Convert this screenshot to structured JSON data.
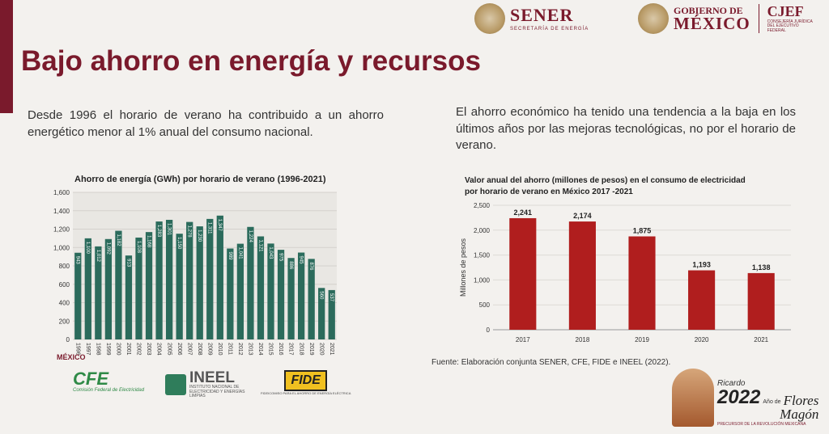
{
  "page_title": "Bajo ahorro en energía y recursos",
  "header": {
    "sener": {
      "name": "SENER",
      "subtitle": "SECRETARÍA DE ENERGÍA"
    },
    "gobierno": {
      "line1": "GOBIERNO DE",
      "line2": "MÉXICO"
    },
    "cjef": {
      "name": "CJEF",
      "subtitle": "CONSEJERÍA JURÍDICA DEL EJECUTIVO FEDERAL"
    }
  },
  "left_paragraph": "Desde 1996 el horario de verano ha contribuido a un ahorro energético menor al 1% anual del consumo nacional.",
  "right_paragraph": "El ahorro económico ha tenido una tendencia a la baja en los últimos años por las mejoras tecnológicas, no por el horario de verano.",
  "chart_data": [
    {
      "type": "bar",
      "title": "Ahorro de energía (GWh) por horario de verano (1996-2021)",
      "xlabel": "",
      "ylabel": "",
      "categories": [
        "1996",
        "1997",
        "1998",
        "1999",
        "2000",
        "2001",
        "2002",
        "2003",
        "2004",
        "2005",
        "2006",
        "2007",
        "2008",
        "2009",
        "2010",
        "2011",
        "2012",
        "2013",
        "2014",
        "2015",
        "2016",
        "2017",
        "2018",
        "2019",
        "2020",
        "2021"
      ],
      "values": [
        943,
        1100,
        1012,
        1092,
        1182,
        913,
        1108,
        1168,
        1283,
        1301,
        1150,
        1278,
        1230,
        1311,
        1347,
        989,
        1041,
        1224,
        1121,
        1043,
        975,
        886,
        945,
        876,
        560,
        537
      ],
      "ylim": [
        0,
        1600
      ],
      "yticks": [
        "0",
        "200",
        "400",
        "600",
        "800",
        "1,000",
        "1,200",
        "1,400",
        "1,600"
      ],
      "bar_color": "#2b6b5c",
      "grid": true
    },
    {
      "type": "bar",
      "title": "Valor anual del ahorro (millones de pesos) en el consumo de electricidad por horario de verano en México 2017 -2021",
      "title_lines": [
        "Valor anual del ahorro (millones de pesos) en el consumo de electricidad",
        "por horario de verano en México 2017 -2021"
      ],
      "xlabel": "",
      "ylabel": "Millones de pesos",
      "categories": [
        "2017",
        "2018",
        "2019",
        "2020",
        "2021"
      ],
      "values": [
        2241,
        2174,
        1875,
        1193,
        1138
      ],
      "value_labels": [
        "2,241",
        "2,174",
        "1,875",
        "1,193",
        "1,138"
      ],
      "ylim": [
        0,
        2500
      ],
      "yticks": [
        "0",
        "500",
        "1,000",
        "1,500",
        "2,000",
        "2,500"
      ],
      "bar_color": "#b01e1e",
      "grid": true
    }
  ],
  "source_note": "Fuente: Elaboración conjunta SENER, CFE, FIDE e INEEL (2022).",
  "footer_logos": {
    "mexico_small": [
      "MÉXICO"
    ],
    "cfe": {
      "name": "CFE",
      "subtitle": "Comisión Federal de Electricidad"
    },
    "ineel": {
      "name": "INEEL",
      "subtitle": "INSTITUTO NACIONAL DE ELECTRICIDAD Y ENERGÍAS LIMPIAS"
    },
    "fide": {
      "name": "FIDE",
      "subtitle": "FIDEICOMISO PARA EL AHORRO DE ENERGÍA ELÉCTRICA"
    }
  },
  "anio_badge": {
    "year": "2022",
    "line_top": "Ricardo",
    "small": "Año de",
    "name1": "Flores",
    "name2": "Magón",
    "subtitle": "PRECURSOR DE LA REVOLUCIÓN MEXICANA"
  }
}
